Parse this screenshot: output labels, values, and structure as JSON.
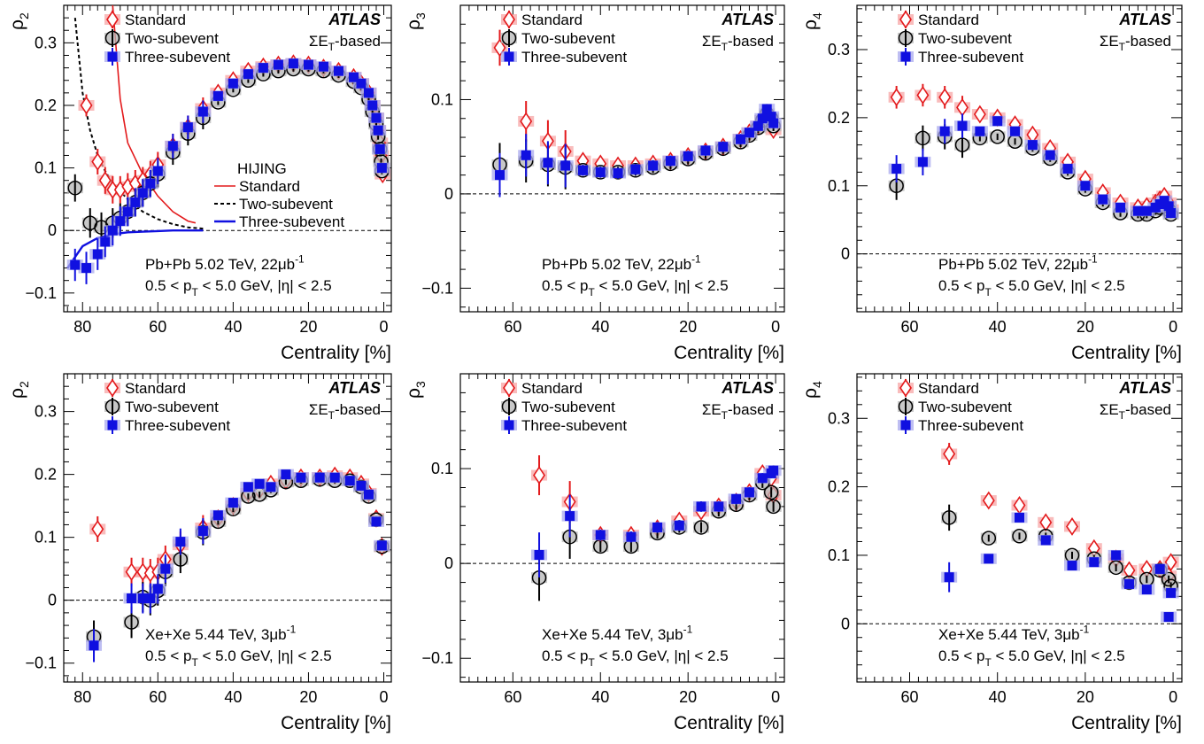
{
  "common": {
    "legend": [
      "Standard",
      "Two-subevent",
      "Three-subevent"
    ],
    "experiment": "ATLAS",
    "method": "ΣET-based",
    "xlabel": "Centrality [%]",
    "colors": {
      "standard": "#e31a1c",
      "standard_band": "#f7a6a6",
      "two": "#000000",
      "two_band": "#b5b5b5",
      "three": "#1010e0",
      "three_band": "#a8a8ee"
    }
  },
  "chart_data": [
    {
      "type": "scatter",
      "id": "p2-pbpb",
      "ylabel": "ρ2",
      "xlim": [
        85,
        -2
      ],
      "ylim": [
        -0.13,
        0.36
      ],
      "xticks": [
        80,
        60,
        40,
        20,
        0
      ],
      "yticks": [
        -0.1,
        0,
        0.1,
        0.2,
        0.3
      ],
      "system": "Pb+Pb 5.02 TeV, 22μb-1",
      "cuts": "0.5 < pT < 5.0 GeV, |η| < 2.5",
      "series": [
        {
          "name": "Standard",
          "x": [
            79,
            76,
            74,
            72,
            70,
            68,
            66,
            64,
            62,
            60,
            56,
            52,
            48,
            44,
            40,
            36,
            32,
            28,
            24,
            20,
            16,
            12,
            8,
            6,
            4,
            3,
            2,
            1.5,
            1,
            0.7,
            0.5,
            0.3
          ],
          "y": [
            0.2,
            0.11,
            0.08,
            0.065,
            0.065,
            0.07,
            0.075,
            0.08,
            0.09,
            0.105,
            0.135,
            0.165,
            0.195,
            0.22,
            0.24,
            0.255,
            0.262,
            0.265,
            0.267,
            0.265,
            0.26,
            0.255,
            0.245,
            0.235,
            0.22,
            0.2,
            0.18,
            0.16,
            0.14,
            0.12,
            0.1,
            0.09
          ]
        },
        {
          "name": "Two-subevent",
          "x": [
            82,
            78,
            75,
            72,
            70,
            68,
            66,
            64,
            62,
            60,
            56,
            52,
            48,
            44,
            40,
            36,
            32,
            28,
            24,
            20,
            16,
            12,
            8,
            6,
            4,
            3,
            2,
            1.5,
            1,
            0.7,
            0.5
          ],
          "y": [
            0.068,
            0.012,
            0.005,
            0.012,
            0.02,
            0.03,
            0.045,
            0.06,
            0.075,
            0.09,
            0.125,
            0.155,
            0.18,
            0.205,
            0.225,
            0.24,
            0.25,
            0.255,
            0.258,
            0.258,
            0.255,
            0.248,
            0.238,
            0.228,
            0.21,
            0.19,
            0.17,
            0.15,
            0.13,
            0.11,
            0.095
          ]
        },
        {
          "name": "Three-subevent",
          "x": [
            82,
            79,
            76,
            74,
            72,
            70,
            68,
            66,
            64,
            62,
            60,
            56,
            52,
            48,
            44,
            40,
            36,
            32,
            28,
            24,
            20,
            16,
            12,
            8,
            6,
            4,
            3,
            2,
            1.5,
            1,
            0.5
          ],
          "y": [
            -0.055,
            -0.06,
            -0.038,
            -0.018,
            0.0,
            0.015,
            0.03,
            0.045,
            0.06,
            0.075,
            0.095,
            0.135,
            0.165,
            0.19,
            0.215,
            0.235,
            0.25,
            0.26,
            0.265,
            0.267,
            0.265,
            0.262,
            0.255,
            0.245,
            0.235,
            0.22,
            0.2,
            0.18,
            0.16,
            0.13,
            0.1
          ]
        }
      ],
      "curves": {
        "title": "HIJING",
        "standard": {
          "x": [
            72,
            70,
            68,
            64,
            60,
            56,
            52,
            50
          ],
          "y": [
            0.36,
            0.21,
            0.14,
            0.09,
            0.055,
            0.03,
            0.015,
            0.012
          ]
        },
        "two": {
          "x": [
            82,
            80,
            78,
            76,
            74,
            72,
            68,
            64,
            60,
            56,
            52,
            48
          ],
          "y": [
            0.34,
            0.22,
            0.16,
            0.12,
            0.095,
            0.075,
            0.05,
            0.03,
            0.018,
            0.01,
            0.005,
            0.003
          ]
        },
        "three": {
          "x": [
            84,
            80,
            76,
            72,
            68,
            64,
            60,
            56,
            52,
            48
          ],
          "y": [
            -0.06,
            -0.025,
            -0.012,
            -0.006,
            -0.003,
            -0.002,
            -0.001,
            0.0,
            0.0,
            0.0
          ]
        }
      }
    },
    {
      "type": "scatter",
      "id": "p3-pbpb",
      "ylabel": "ρ3",
      "xlim": [
        72,
        -2
      ],
      "ylim": [
        -0.125,
        0.2
      ],
      "xticks": [
        60,
        40,
        20,
        0
      ],
      "yticks": [
        -0.1,
        0,
        0.1
      ],
      "system": "Pb+Pb 5.02 TeV, 22μb-1",
      "cuts": "0.5 < pT < 5.0 GeV, |η| < 2.5",
      "series": [
        {
          "name": "Standard",
          "x": [
            63,
            57,
            52,
            48,
            44,
            40,
            36,
            32,
            28,
            24,
            20,
            16,
            12,
            8,
            6,
            4,
            3,
            2,
            1,
            0.5
          ],
          "y": [
            0.155,
            0.077,
            0.056,
            0.045,
            0.035,
            0.032,
            0.03,
            0.03,
            0.032,
            0.035,
            0.04,
            0.045,
            0.05,
            0.058,
            0.065,
            0.072,
            0.078,
            0.082,
            0.075,
            0.068
          ]
        },
        {
          "name": "Two-subevent",
          "x": [
            63,
            57,
            52,
            48,
            44,
            40,
            36,
            32,
            28,
            24,
            20,
            16,
            12,
            8,
            6,
            4,
            3,
            2,
            1,
            0.5
          ],
          "y": [
            0.031,
            0.035,
            0.031,
            0.028,
            0.025,
            0.023,
            0.023,
            0.025,
            0.028,
            0.032,
            0.037,
            0.043,
            0.048,
            0.055,
            0.062,
            0.07,
            0.078,
            0.085,
            0.08,
            0.072
          ]
        },
        {
          "name": "Three-subevent",
          "x": [
            63,
            57,
            52,
            48,
            44,
            40,
            36,
            32,
            28,
            24,
            20,
            16,
            12,
            8,
            6,
            4,
            3,
            2,
            1,
            0.5
          ],
          "y": [
            0.02,
            0.041,
            0.033,
            0.03,
            0.025,
            0.023,
            0.022,
            0.026,
            0.03,
            0.035,
            0.04,
            0.046,
            0.05,
            0.058,
            0.065,
            0.072,
            0.08,
            0.09,
            0.082,
            0.075
          ]
        }
      ]
    },
    {
      "type": "scatter",
      "id": "p4-pbpb",
      "ylabel": "ρ4",
      "xlim": [
        72,
        -2
      ],
      "ylim": [
        -0.085,
        0.365
      ],
      "xticks": [
        60,
        40,
        20,
        0
      ],
      "yticks": [
        0,
        0.1,
        0.2,
        0.3
      ],
      "system": "Pb+Pb 5.02 TeV, 22μb-1",
      "cuts": "0.5 < pT < 5.0 GeV, |η| < 2.5",
      "series": [
        {
          "name": "Standard",
          "x": [
            63,
            57,
            52,
            48,
            44,
            40,
            36,
            32,
            28,
            24,
            20,
            16,
            12,
            8,
            6,
            4,
            3,
            2,
            1,
            0.5
          ],
          "y": [
            0.23,
            0.233,
            0.23,
            0.215,
            0.205,
            0.2,
            0.19,
            0.175,
            0.155,
            0.135,
            0.11,
            0.09,
            0.075,
            0.068,
            0.07,
            0.075,
            0.08,
            0.085,
            0.075,
            0.065
          ]
        },
        {
          "name": "Two-subevent",
          "x": [
            63,
            57,
            52,
            48,
            44,
            40,
            36,
            32,
            28,
            24,
            20,
            16,
            12,
            8,
            6,
            4,
            3,
            2,
            1,
            0.5
          ],
          "y": [
            0.1,
            0.17,
            0.172,
            0.16,
            0.17,
            0.172,
            0.165,
            0.155,
            0.14,
            0.12,
            0.095,
            0.075,
            0.06,
            0.058,
            0.058,
            0.063,
            0.068,
            0.07,
            0.065,
            0.058
          ]
        },
        {
          "name": "Three-subevent",
          "x": [
            63,
            57,
            52,
            48,
            44,
            40,
            36,
            32,
            28,
            24,
            20,
            16,
            12,
            8,
            6,
            4,
            3,
            2,
            1,
            0.5
          ],
          "y": [
            0.125,
            0.135,
            0.18,
            0.188,
            0.18,
            0.195,
            0.18,
            0.16,
            0.145,
            0.125,
            0.1,
            0.08,
            0.068,
            0.063,
            0.063,
            0.068,
            0.073,
            0.078,
            0.07,
            0.06
          ]
        }
      ]
    },
    {
      "type": "scatter",
      "id": "p2-xexe",
      "ylabel": "ρ2",
      "xlim": [
        85,
        -2
      ],
      "ylim": [
        -0.13,
        0.36
      ],
      "xticks": [
        80,
        60,
        40,
        20,
        0
      ],
      "yticks": [
        -0.1,
        0,
        0.1,
        0.2,
        0.3
      ],
      "system": "Xe+Xe 5.44 TeV, 3μb-1",
      "cuts": "0.5 < pT < 5.0 GeV, |η| < 2.5",
      "series": [
        {
          "name": "Standard",
          "x": [
            76,
            67,
            64,
            62,
            60,
            58,
            54,
            48,
            44,
            40,
            36,
            33,
            30,
            26,
            22,
            17,
            13,
            9,
            6,
            4,
            2,
            0.5
          ],
          "y": [
            0.113,
            0.045,
            0.045,
            0.043,
            0.045,
            0.065,
            0.088,
            0.115,
            0.13,
            0.15,
            0.17,
            0.175,
            0.185,
            0.19,
            0.195,
            0.195,
            0.198,
            0.195,
            0.185,
            0.17,
            0.13,
            0.085
          ]
        },
        {
          "name": "Two-subevent",
          "x": [
            77,
            67,
            64,
            62,
            60,
            58,
            54,
            48,
            44,
            40,
            36,
            33,
            30,
            26,
            22,
            17,
            13,
            9,
            6,
            4,
            2,
            0.5
          ],
          "y": [
            -0.058,
            -0.035,
            0.005,
            0.0,
            0.015,
            0.045,
            0.065,
            0.108,
            0.125,
            0.145,
            0.165,
            0.168,
            0.175,
            0.188,
            0.19,
            0.192,
            0.19,
            0.19,
            0.18,
            0.165,
            0.128,
            0.085
          ]
        },
        {
          "name": "Three-subevent",
          "x": [
            77,
            67,
            64,
            62,
            60,
            58,
            54,
            48,
            44,
            40,
            36,
            33,
            30,
            26,
            22,
            17,
            13,
            9,
            6,
            4,
            2,
            0.5
          ],
          "y": [
            -0.072,
            0.003,
            0.003,
            0.003,
            0.018,
            0.05,
            0.093,
            0.11,
            0.135,
            0.155,
            0.18,
            0.185,
            0.18,
            0.2,
            0.195,
            0.195,
            0.195,
            0.19,
            0.182,
            0.168,
            0.125,
            0.087
          ]
        }
      ]
    },
    {
      "type": "scatter",
      "id": "p3-xexe",
      "ylabel": "ρ3",
      "xlim": [
        72,
        -2
      ],
      "ylim": [
        -0.125,
        0.2
      ],
      "xticks": [
        60,
        40,
        20,
        0
      ],
      "yticks": [
        -0.1,
        0,
        0.1
      ],
      "system": "Xe+Xe 5.44 TeV, 3μb-1",
      "cuts": "0.5 < pT < 5.0 GeV, |η| < 2.5",
      "series": [
        {
          "name": "Standard",
          "x": [
            54,
            47,
            40,
            33,
            27,
            22,
            17,
            13,
            9,
            6,
            3,
            1,
            0.5
          ],
          "y": [
            0.093,
            0.065,
            0.03,
            0.03,
            0.037,
            0.045,
            0.055,
            0.06,
            0.065,
            0.075,
            0.095,
            0.09,
            0.072
          ]
        },
        {
          "name": "Two-subevent",
          "x": [
            54,
            47,
            40,
            33,
            27,
            22,
            17,
            13,
            9,
            6,
            3,
            1,
            0.5
          ],
          "y": [
            -0.015,
            0.028,
            0.018,
            0.018,
            0.032,
            0.038,
            0.038,
            0.055,
            0.062,
            0.072,
            0.085,
            0.075,
            0.06
          ]
        },
        {
          "name": "Three-subevent",
          "x": [
            54,
            47,
            40,
            33,
            27,
            22,
            17,
            13,
            9,
            6,
            3,
            1,
            0.5
          ],
          "y": [
            0.009,
            0.05,
            0.03,
            0.028,
            0.038,
            0.04,
            0.06,
            0.06,
            0.068,
            0.075,
            0.09,
            0.095,
            0.098
          ]
        }
      ]
    },
    {
      "type": "scatter",
      "id": "p4-xexe",
      "ylabel": "ρ4",
      "xlim": [
        72,
        -2
      ],
      "ylim": [
        -0.085,
        0.365
      ],
      "xticks": [
        60,
        40,
        20,
        0
      ],
      "yticks": [
        0,
        0.1,
        0.2,
        0.3
      ],
      "system": "Xe+Xe 5.44 TeV, 3μb-1",
      "cuts": "0.5 < pT < 5.0 GeV, |η| < 2.5",
      "series": [
        {
          "name": "Standard",
          "x": [
            51,
            42,
            35,
            29,
            23,
            18,
            13,
            10,
            6,
            3,
            1,
            0.5
          ],
          "y": [
            0.248,
            0.18,
            0.173,
            0.148,
            0.142,
            0.11,
            0.095,
            0.078,
            0.08,
            0.08,
            0.07,
            0.09
          ]
        },
        {
          "name": "Two-subevent",
          "x": [
            51,
            42,
            35,
            29,
            23,
            18,
            13,
            10,
            6,
            3,
            1,
            0.5
          ],
          "y": [
            0.155,
            0.125,
            0.128,
            0.128,
            0.1,
            0.095,
            0.082,
            0.06,
            0.065,
            0.078,
            0.065,
            0.055
          ]
        },
        {
          "name": "Three-subevent",
          "x": [
            51,
            42,
            35,
            29,
            23,
            18,
            13,
            10,
            6,
            3,
            1,
            0.5
          ],
          "y": [
            0.068,
            0.095,
            0.155,
            0.122,
            0.085,
            0.09,
            0.1,
            0.058,
            0.05,
            0.08,
            0.01,
            0.045
          ]
        }
      ]
    }
  ]
}
